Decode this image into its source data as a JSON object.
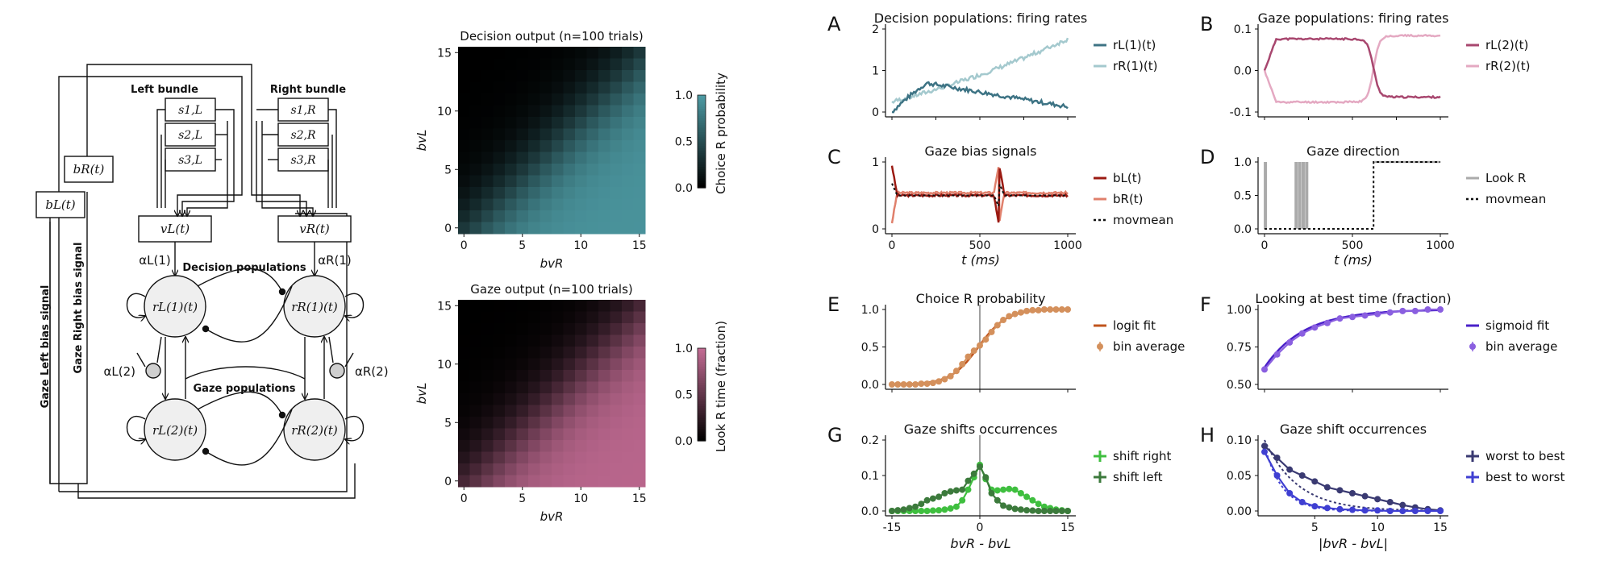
{
  "diagram": {
    "left_bundle": "Left bundle",
    "right_bundle": "Right bundle",
    "s_left": [
      "s1,L",
      "s2,L",
      "s3,L"
    ],
    "s_right": [
      "s1,R",
      "s2,R",
      "s3,R"
    ],
    "bR_box": "bR(t)",
    "bL_box": "bL(t)",
    "vL_box": "vL(t)",
    "vR_box": "vR(t)",
    "alpha_L1": "αL(1)",
    "alpha_R1": "αR(1)",
    "alpha_L2": "αL(2)",
    "alpha_R2": "αR(2)",
    "decision_populations": "Decision populations",
    "gaze_populations": "Gaze populations",
    "rL1": "rL(1)(t)",
    "rR1": "rR(1)(t)",
    "rL2": "rL(2)(t)",
    "rR2": "rR(2)(t)",
    "gaze_left_signal": "Gaze Left bias signal",
    "gaze_right_signal": "Gaze Right bias signal"
  },
  "heatmaps": [
    {
      "title": "Decision output (n=100 trials)",
      "xlabel": "bvR",
      "ylabel": "bvL",
      "xticks": [
        "0",
        "5",
        "10",
        "15"
      ],
      "yticks": [
        "0",
        "5",
        "10",
        "15"
      ],
      "cbar_label": "Choice R probability",
      "cbar_ticks": [
        "1.0",
        "0.5",
        "0.0"
      ],
      "color": "#4d9aa3"
    },
    {
      "title": "Gaze output (n=100 trials)",
      "xlabel": "bvR",
      "ylabel": "bvL",
      "xticks": [
        "0",
        "5",
        "10",
        "15"
      ],
      "yticks": [
        "0",
        "5",
        "10",
        "15"
      ],
      "cbar_label": "Look R time (fraction)",
      "cbar_ticks": [
        "1.0",
        "0.5",
        "0.0"
      ],
      "color": "#c26b93"
    }
  ],
  "panels": {
    "A": {
      "letter": "A",
      "title": "Decision populations: firing rates",
      "yticks": [
        "2",
        "1",
        "0"
      ],
      "legend": [
        "rL(1)(t)",
        "rR(1)(t)"
      ],
      "colors": [
        "#3d7384",
        "#a4c9ce"
      ]
    },
    "B": {
      "letter": "B",
      "title": "Gaze populations: firing rates",
      "yticks": [
        "0.1",
        "0.0",
        "-0.1"
      ],
      "legend": [
        "rL(2)(t)",
        "rR(2)(t)"
      ],
      "colors": [
        "#a8476f",
        "#e4a9c2"
      ]
    },
    "C": {
      "letter": "C",
      "title": "Gaze bias signals",
      "yticks": [
        "1",
        "0"
      ],
      "xticks": [
        "0",
        "500",
        "1000"
      ],
      "xlabel": "t (ms)",
      "legend": [
        "bL(t)",
        "bR(t)",
        "movmean"
      ],
      "colors": [
        "#9b1a12",
        "#e0806c",
        "#111111"
      ]
    },
    "D": {
      "letter": "D",
      "title": "Gaze direction",
      "yticks": [
        "1.0",
        "0.5",
        "0.0"
      ],
      "xticks": [
        "0",
        "500",
        "1000"
      ],
      "xlabel": "t (ms)",
      "legend": [
        "Look R",
        "movmean"
      ],
      "colors": [
        "#aaaaaa",
        "#111111"
      ]
    },
    "E": {
      "letter": "E",
      "title": "Choice R probability",
      "yticks": [
        "1.0",
        "0.5",
        "0.0"
      ],
      "legend": [
        "logit fit",
        "bin average"
      ],
      "colors": [
        "#c0541c",
        "#d4905c"
      ]
    },
    "F": {
      "letter": "F",
      "title": "Looking at best time (fraction)",
      "yticks": [
        "1.00",
        "0.75",
        "0.50"
      ],
      "legend": [
        "sigmoid fit",
        "bin average"
      ],
      "colors": [
        "#4a20c9",
        "#8a5fe0"
      ]
    },
    "G": {
      "letter": "G",
      "title": "Gaze shifts occurrences",
      "yticks": [
        "0.2",
        "0.1",
        "0.0"
      ],
      "xticks": [
        "-15",
        "0",
        "15"
      ],
      "xlabel": "bvR - bvL",
      "legend": [
        "shift right",
        "shift left"
      ],
      "colors": [
        "#3fbf3f",
        "#3c7a3c"
      ]
    },
    "H": {
      "letter": "H",
      "title": "Gaze shift occurrences",
      "yticks": [
        "0.10",
        "0.05",
        "0.00"
      ],
      "xticks": [
        "5",
        "10",
        "15"
      ],
      "xlabel": "|bvR - bvL|",
      "legend": [
        "worst to best",
        "best to worst"
      ],
      "colors": [
        "#3a3a72",
        "#3f3fd2"
      ]
    }
  },
  "chart_data": [
    {
      "type": "line",
      "panel": "E",
      "x": [
        -15,
        -14,
        -13,
        -12,
        -11,
        -10,
        -9,
        -8,
        -7,
        -6,
        -5,
        -4,
        -3,
        -2,
        -1,
        0,
        1,
        2,
        3,
        4,
        5,
        6,
        7,
        8,
        9,
        10,
        11,
        12,
        13,
        14,
        15
      ],
      "series": [
        {
          "name": "bin average",
          "values": [
            0,
            0,
            0,
            0,
            0,
            0.01,
            0.01,
            0.02,
            0.04,
            0.07,
            0.11,
            0.18,
            0.27,
            0.37,
            0.45,
            0.52,
            0.6,
            0.7,
            0.79,
            0.86,
            0.91,
            0.94,
            0.96,
            0.98,
            0.99,
            0.99,
            1,
            1,
            1,
            1,
            1
          ]
        }
      ],
      "xlim": [
        -15,
        15
      ],
      "ylim": [
        0,
        1
      ]
    },
    {
      "type": "line",
      "panel": "F",
      "x": [
        1,
        2,
        3,
        4,
        5,
        6,
        7,
        8,
        9,
        10,
        11,
        12,
        13,
        14,
        15
      ],
      "series": [
        {
          "name": "bin average",
          "values": [
            0.6,
            0.7,
            0.78,
            0.84,
            0.88,
            0.91,
            0.94,
            0.95,
            0.96,
            0.97,
            0.98,
            0.99,
            0.99,
            1,
            1
          ]
        }
      ],
      "xlim": [
        1,
        15
      ],
      "ylim": [
        0.5,
        1
      ]
    },
    {
      "type": "line",
      "panel": "G",
      "x": [
        -15,
        -14,
        -13,
        -12,
        -11,
        -10,
        -9,
        -8,
        -7,
        -6,
        -5,
        -4,
        -3,
        -2,
        -1,
        0,
        1,
        2,
        3,
        4,
        5,
        6,
        7,
        8,
        9,
        10,
        11,
        12,
        13,
        14,
        15
      ],
      "series": [
        {
          "name": "shift right",
          "values": [
            0,
            0,
            0,
            0,
            0,
            0,
            0,
            0.001,
            0.002,
            0.004,
            0.007,
            0.012,
            0.03,
            0.06,
            0.095,
            0.13,
            0.09,
            0.06,
            0.058,
            0.06,
            0.062,
            0.06,
            0.05,
            0.04,
            0.03,
            0.02,
            0.012,
            0.008,
            0.004,
            0.002,
            0
          ]
        },
        {
          "name": "shift left",
          "values": [
            0,
            0.002,
            0.004,
            0.008,
            0.012,
            0.02,
            0.03,
            0.035,
            0.04,
            0.05,
            0.055,
            0.058,
            0.06,
            0.085,
            0.105,
            0.125,
            0.095,
            0.05,
            0.03,
            0.015,
            0.01,
            0.006,
            0.004,
            0.002,
            0.001,
            0,
            0,
            0,
            0,
            0,
            0
          ]
        }
      ],
      "xlim": [
        -15,
        15
      ],
      "ylim": [
        0,
        0.2
      ]
    },
    {
      "type": "line",
      "panel": "H",
      "x": [
        1,
        2,
        3,
        4,
        5,
        6,
        7,
        8,
        9,
        10,
        11,
        12,
        13,
        14,
        15
      ],
      "series": [
        {
          "name": "worst to best",
          "values": [
            0.11,
            0.09,
            0.07,
            0.06,
            0.05,
            0.04,
            0.035,
            0.03,
            0.025,
            0.02,
            0.015,
            0.01,
            0.006,
            0.003,
            0.001
          ]
        },
        {
          "name": "best to worst",
          "values": [
            0.1,
            0.06,
            0.03,
            0.015,
            0.008,
            0.005,
            0.003,
            0.002,
            0.001,
            0.001,
            0,
            0,
            0,
            0,
            0
          ]
        }
      ],
      "xlim": [
        1,
        15
      ],
      "ylim": [
        0,
        0.12
      ]
    }
  ]
}
